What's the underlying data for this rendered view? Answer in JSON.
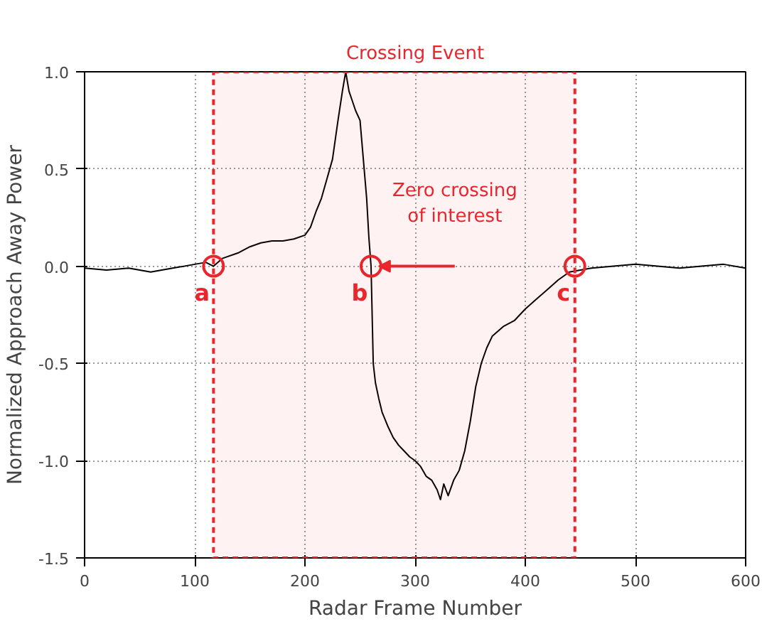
{
  "chart_data": {
    "type": "line",
    "xlabel": "Radar Frame Number",
    "ylabel": "Normalized Approach Away Power",
    "x": [
      0,
      20,
      40,
      60,
      80,
      100,
      110,
      117,
      125,
      140,
      150,
      160,
      170,
      180,
      190,
      200,
      205,
      210,
      215,
      220,
      225,
      230,
      234,
      237,
      240,
      243,
      246,
      250,
      253,
      256,
      258,
      260,
      262,
      264,
      267,
      270,
      275,
      280,
      285,
      290,
      295,
      300,
      305,
      310,
      315,
      320,
      323,
      326,
      330,
      335,
      340,
      345,
      350,
      355,
      360,
      365,
      370,
      380,
      390,
      400,
      410,
      420,
      430,
      440,
      450,
      460,
      480,
      500,
      520,
      540,
      560,
      580,
      600
    ],
    "series": [
      {
        "color": "#000000",
        "values": [
          -0.01,
          -0.02,
          -0.01,
          -0.03,
          -0.01,
          0.01,
          0.02,
          0.0,
          0.04,
          0.07,
          0.1,
          0.12,
          0.13,
          0.13,
          0.14,
          0.16,
          0.2,
          0.28,
          0.35,
          0.45,
          0.55,
          0.75,
          0.9,
          1.0,
          0.9,
          0.85,
          0.8,
          0.75,
          0.55,
          0.35,
          0.15,
          0.0,
          -0.5,
          -0.6,
          -0.68,
          -0.75,
          -0.82,
          -0.88,
          -0.92,
          -0.95,
          -0.98,
          -1.0,
          -1.03,
          -1.08,
          -1.1,
          -1.15,
          -1.2,
          -1.12,
          -1.18,
          -1.1,
          -1.05,
          -0.95,
          -0.8,
          -0.62,
          -0.5,
          -0.42,
          -0.36,
          -0.31,
          -0.28,
          -0.22,
          -0.17,
          -0.12,
          -0.07,
          -0.03,
          -0.02,
          -0.01,
          0.0,
          0.01,
          0.0,
          -0.01,
          0.0,
          0.01,
          -0.01
        ]
      }
    ],
    "xlim": [
      0,
      600
    ],
    "ylim": [
      -1.5,
      1.0
    ],
    "xticks": [
      0,
      100,
      200,
      300,
      400,
      500,
      600
    ],
    "yticks": [
      -1.5,
      {
        "value": -1,
        "label": "-1.0"
      },
      -0.5,
      {
        "value": 0,
        "label": "0.0"
      },
      0.5,
      {
        "value": 1,
        "label": "1.0"
      }
    ],
    "grid": true,
    "bands": [
      {
        "axis": "x",
        "from": 117,
        "to": 445,
        "label": "Crossing Event",
        "color": "#e8262b"
      }
    ],
    "annotations": [
      {
        "text": "a",
        "x": 117,
        "y": 0.0
      },
      {
        "text": "b",
        "x": 260,
        "y": 0.0
      },
      {
        "text": "c",
        "x": 445,
        "y": 0.0
      },
      "Zero crossing\nof interest"
    ]
  }
}
